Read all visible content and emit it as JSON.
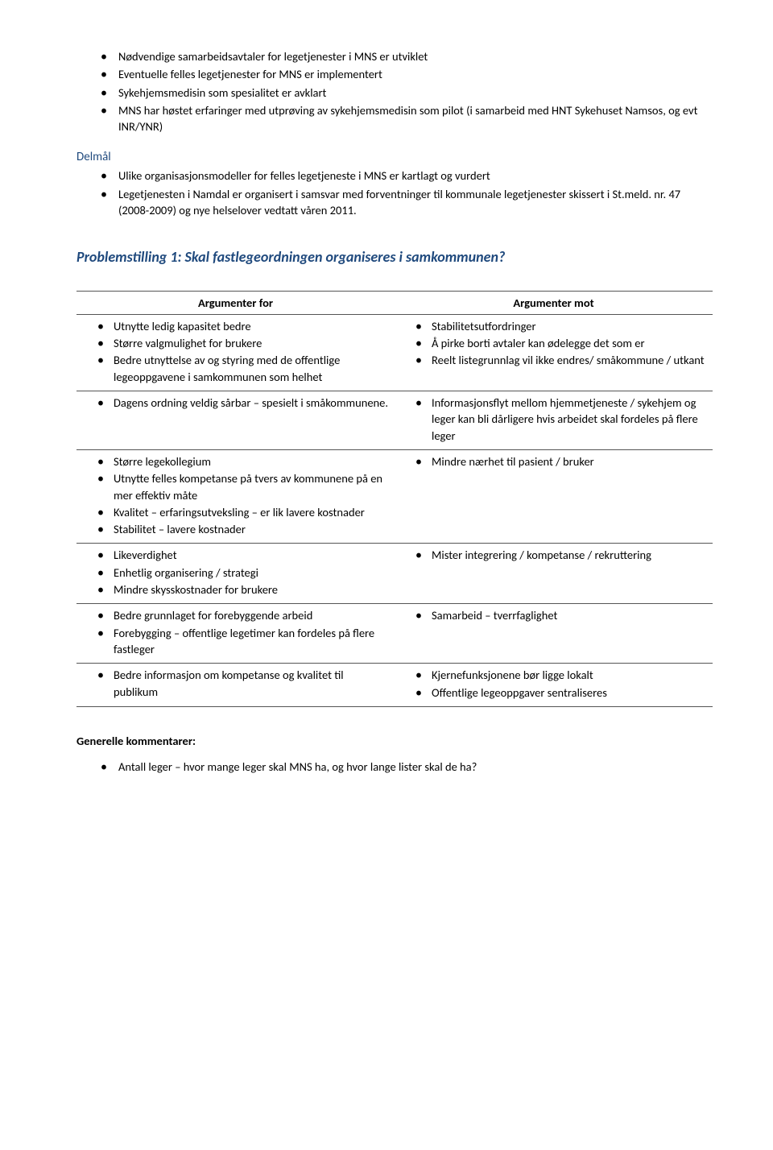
{
  "top_bullets": [
    "Nødvendige samarbeidsavtaler for legetjenester i MNS er utviklet",
    "Eventuelle felles legetjenester for MNS er implementert",
    "Sykehjemsmedisin som spesialitet er avklart",
    "MNS har høstet erfaringer med utprøving av sykehjemsmedisin som pilot (i samarbeid med HNT Sykehuset Namsos, og evt INR/YNR)"
  ],
  "delmal_label": "Delmål",
  "delmal_bullets": [
    "Ulike organisasjonsmodeller for felles legetjeneste i MNS er kartlagt og vurdert",
    "Legetjenesten i Namdal er organisert i samsvar med forventninger til kommunale legetjenester skissert i St.meld. nr. 47 (2008-2009) og nye helselover vedtatt våren 2011."
  ],
  "problem_heading": "Problemstilling 1: Skal fastlegeordningen organiseres i samkommunen?",
  "table": {
    "header_for": "Argumenter for",
    "header_mot": "Argumenter mot",
    "rows": [
      {
        "for": [
          "Utnytte ledig kapasitet bedre",
          "Større valgmulighet for brukere",
          "Bedre utnyttelse av og styring med de offentlige legeoppgavene i samkommunen som helhet"
        ],
        "mot": [
          "Stabilitetsutfordringer",
          "Å pirke borti avtaler kan ødelegge det som er",
          "Reelt listegrunnlag vil ikke endres/ småkommune / utkant"
        ]
      },
      {
        "for": [
          "Dagens ordning veldig sårbar – spesielt i småkommunene."
        ],
        "mot": [
          "Informasjonsflyt mellom hjemmetjeneste / sykehjem og leger kan bli dårligere hvis arbeidet skal fordeles på flere leger"
        ]
      },
      {
        "for": [
          "Større legekollegium",
          "Utnytte felles kompetanse på tvers av kommunene på en mer effektiv måte",
          "Kvalitet – erfaringsutveksling – er lik lavere kostnader",
          "Stabilitet – lavere kostnader"
        ],
        "mot": [
          "Mindre nærhet til pasient / bruker"
        ]
      },
      {
        "for": [
          "Likeverdighet",
          "Enhetlig organisering / strategi",
          "Mindre skysskostnader for brukere"
        ],
        "mot": [
          "Mister integrering / kompetanse / rekruttering"
        ]
      },
      {
        "for": [
          "Bedre grunnlaget for forebyggende arbeid",
          "Forebygging – offentlige legetimer kan fordeles på flere fastleger"
        ],
        "mot": [
          "Samarbeid – tverrfaglighet"
        ]
      },
      {
        "for": [
          "Bedre informasjon om kompetanse og kvalitet til publikum"
        ],
        "mot": [
          "Kjernefunksjonene bør ligge lokalt",
          "Offentlige legeoppgaver sentraliseres"
        ]
      }
    ]
  },
  "generelle_label": "Generelle kommentarer:",
  "generelle_bullets": [
    "Antall leger – hvor mange leger skal MNS ha, og hvor lange lister skal de ha?"
  ]
}
